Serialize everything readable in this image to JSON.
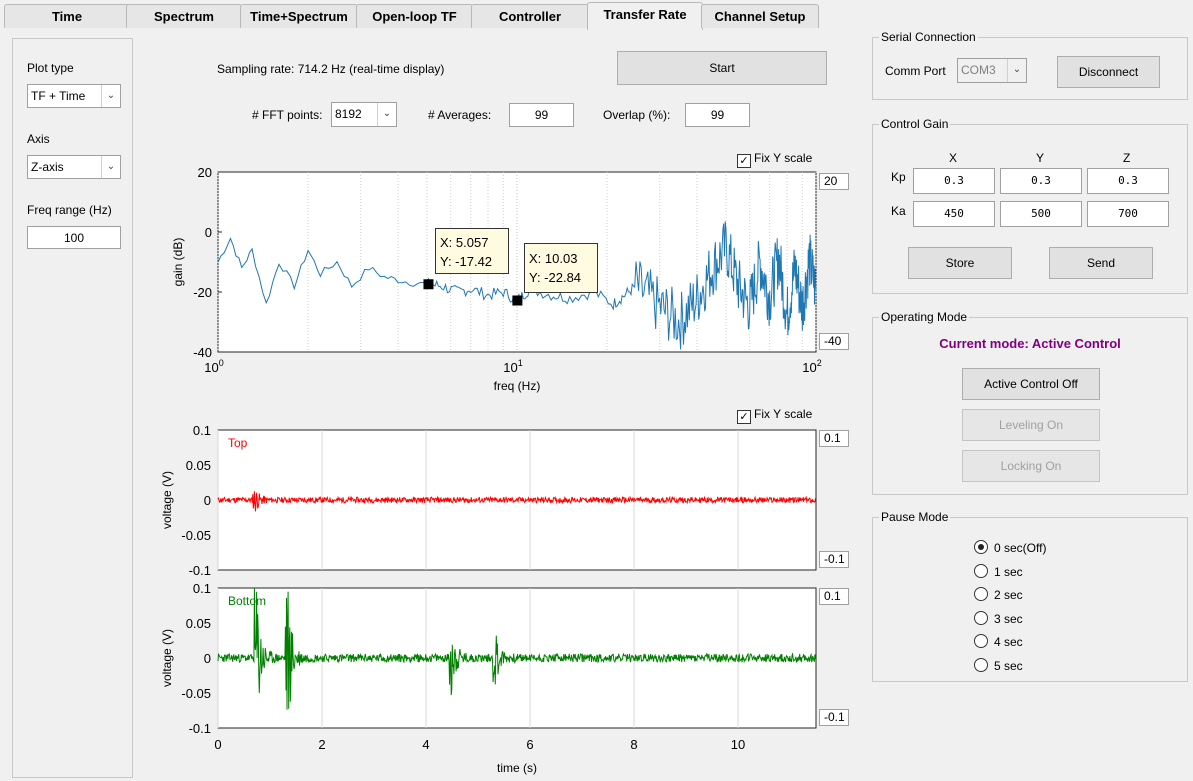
{
  "tabs": [
    "Time",
    "Spectrum",
    "Time+Spectrum",
    "Open-loop TF",
    "Controller",
    "Transfer Rate",
    "Channel Setup"
  ],
  "active_tab": "Transfer Rate",
  "left_panel": {
    "plot_type_label": "Plot type",
    "plot_type_value": "TF + Time",
    "axis_label": "Axis",
    "axis_value": "Z-axis",
    "freq_range_label": "Freq range (Hz)",
    "freq_range_value": "100"
  },
  "controls": {
    "sampling_rate": "Sampling rate: 714.2 Hz (real-time display)",
    "start_label": "Start",
    "fft_label": "# FFT points:",
    "fft_value": "8192",
    "averages_label": "# Averages:",
    "averages_value": "99",
    "overlap_label": "Overlap (%):",
    "overlap_value": "99"
  },
  "tf_plot": {
    "fix_y_label": "Fix Y scale",
    "fix_y_checked": true,
    "ymax_value": "20",
    "ymin_value": "-40",
    "datatip1": {
      "x": "X: 5.057",
      "y": "Y: -17.42"
    },
    "datatip2": {
      "x": "X: 10.03",
      "y": "Y: -22.84"
    }
  },
  "time_plots": {
    "fix_y_label": "Fix Y scale",
    "fix_y_checked": true,
    "top_ymax": "0.1",
    "top_ymin": "-0.1",
    "bottom_ymax": "0.1",
    "bottom_ymin": "-0.1"
  },
  "chart_data": [
    {
      "type": "line",
      "xlabel": "freq (Hz)",
      "ylabel": "gain (dB)",
      "xscale": "log",
      "xlim": [
        1,
        100
      ],
      "ylim": [
        -40,
        20
      ],
      "xticks": [
        "10^0",
        "10^1",
        "10^2"
      ],
      "yticks": [
        20,
        0,
        -20,
        -40
      ],
      "grid": "vertical minor log",
      "color": "#1f77b4",
      "x": [
        1,
        1.1,
        1.2,
        1.3,
        1.45,
        1.6,
        1.8,
        2,
        2.2,
        2.5,
        2.8,
        3.2,
        3.6,
        4,
        4.5,
        5.057,
        5.6,
        6.3,
        7,
        8,
        9,
        10.03,
        11,
        13,
        15,
        18,
        21,
        25,
        30,
        35,
        40,
        45,
        50,
        55,
        60,
        65,
        70,
        75,
        80,
        85,
        90,
        95,
        100
      ],
      "y": [
        -10,
        -2,
        -12,
        -6,
        -24,
        -10,
        -18,
        -6,
        -14,
        -10,
        -18,
        -12,
        -15,
        -16,
        -17,
        -17.42,
        -18,
        -20,
        -19,
        -21,
        -20,
        -22.84,
        -19,
        -21,
        -22,
        -20,
        -24,
        -18,
        -25,
        -30,
        -22,
        -12,
        -5,
        -18,
        -25,
        -10,
        -22,
        -8,
        -28,
        -12,
        -25,
        -9,
        -20
      ],
      "markers": [
        {
          "x": 5.057,
          "y": -17.42
        },
        {
          "x": 10.03,
          "y": -22.84
        }
      ]
    },
    {
      "type": "line",
      "ylabel": "voltage (V)",
      "xlim": [
        0,
        11.5
      ],
      "ylim": [
        -0.1,
        0.1
      ],
      "yticks": [
        0.1,
        0.05,
        0,
        -0.05,
        -0.1
      ],
      "grid": "vertical",
      "series": [
        {
          "name": "Top",
          "color": "#ff0000",
          "noise": 0.004,
          "bursts": [
            {
              "t": 0.72,
              "amp": 0.015
            }
          ]
        }
      ]
    },
    {
      "type": "line",
      "xlabel": "time (s)",
      "ylabel": "voltage (V)",
      "xlim": [
        0,
        11.5
      ],
      "ylim": [
        -0.1,
        0.1
      ],
      "xticks": [
        0,
        2,
        4,
        6,
        8,
        10
      ],
      "yticks": [
        0.1,
        0.05,
        0,
        -0.05,
        -0.1
      ],
      "grid": "vertical",
      "series": [
        {
          "name": "Bottom",
          "color": "#008000",
          "noise": 0.006,
          "bursts": [
            {
              "t": 0.75,
              "amp": 0.1
            },
            {
              "t": 1.35,
              "amp": 0.1
            },
            {
              "t": 4.5,
              "amp": 0.05
            },
            {
              "t": 5.35,
              "amp": 0.035
            }
          ]
        }
      ]
    }
  ],
  "serial": {
    "title": "Serial Connection",
    "comm_port_label": "Comm Port",
    "comm_port_value": "COM3",
    "disconnect_label": "Disconnect"
  },
  "gain": {
    "title": "Control Gain",
    "cols": [
      "X",
      "Y",
      "Z"
    ],
    "kp_label": "Kp",
    "ka_label": "Ka",
    "kp": [
      "0.3",
      "0.3",
      "0.3"
    ],
    "ka": [
      "450",
      "500",
      "700"
    ],
    "store_label": "Store",
    "send_label": "Send"
  },
  "operating": {
    "title": "Operating Mode",
    "current_mode": "Current mode: Active Control",
    "current_mode_color": "#800080",
    "active_off_label": "Active Control Off",
    "leveling_label": "Leveling On",
    "locking_label": "Locking On"
  },
  "pause": {
    "title": "Pause Mode",
    "options": [
      "0 sec(Off)",
      "1 sec",
      "2 sec",
      "3 sec",
      "4 sec",
      "5 sec"
    ],
    "selected": 0
  }
}
